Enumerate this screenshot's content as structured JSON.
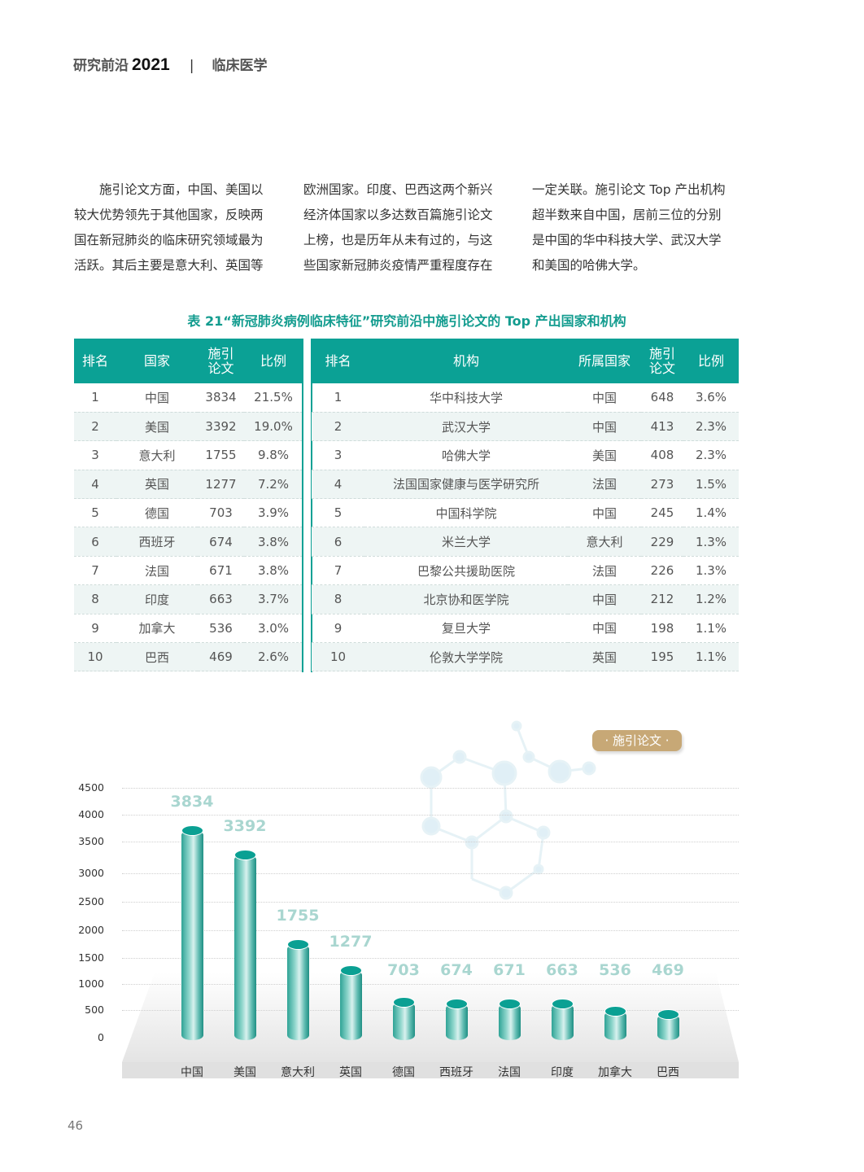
{
  "header": {
    "title": "研究前沿",
    "year": "2021",
    "separator": "|",
    "section": "临床医学"
  },
  "body_text": {
    "col1": [
      "　　施引论文方面，中国、美国以",
      "较大优势领先于其他国家，反映两",
      "国在新冠肺炎的临床研究领域最为",
      "活跃。其后主要是意大利、英国等"
    ],
    "col2": [
      "欧洲国家。印度、巴西这两个新兴",
      "经济体国家以多达数百篇施引论文",
      "上榜，也是历年从未有过的，与这",
      "些国家新冠肺炎疫情严重程度存在"
    ],
    "col3": [
      "一定关联。施引论文 Top 产出机构",
      "超半数来自中国，居前三位的分别",
      "是中国的华中科技大学、武汉大学",
      "和美国的哈佛大学。"
    ]
  },
  "table_caption": "表 21“新冠肺炎病例临床特征”研究前沿中施引论文的 Top 产出国家和机构",
  "countries_table": {
    "headers": [
      "排名",
      "国家",
      "施引论文",
      "比例"
    ],
    "rows": [
      [
        "1",
        "中国",
        "3834",
        "21.5%"
      ],
      [
        "2",
        "美国",
        "3392",
        "19.0%"
      ],
      [
        "3",
        "意大利",
        "1755",
        "9.8%"
      ],
      [
        "4",
        "英国",
        "1277",
        "7.2%"
      ],
      [
        "5",
        "德国",
        "703",
        "3.9%"
      ],
      [
        "6",
        "西班牙",
        "674",
        "3.8%"
      ],
      [
        "7",
        "法国",
        "671",
        "3.8%"
      ],
      [
        "8",
        "印度",
        "663",
        "3.7%"
      ],
      [
        "9",
        "加拿大",
        "536",
        "3.0%"
      ],
      [
        "10",
        "巴西",
        "469",
        "2.6%"
      ]
    ]
  },
  "institutions_table": {
    "headers": [
      "排名",
      "机构",
      "所属国家",
      "施引论文",
      "比例"
    ],
    "rows": [
      [
        "1",
        "华中科技大学",
        "中国",
        "648",
        "3.6%"
      ],
      [
        "2",
        "武汉大学",
        "中国",
        "413",
        "2.3%"
      ],
      [
        "3",
        "哈佛大学",
        "美国",
        "408",
        "2.3%"
      ],
      [
        "4",
        "法国国家健康与医学研究所",
        "法国",
        "273",
        "1.5%"
      ],
      [
        "5",
        "中国科学院",
        "中国",
        "245",
        "1.4%"
      ],
      [
        "6",
        "米兰大学",
        "意大利",
        "229",
        "1.3%"
      ],
      [
        "7",
        "巴黎公共援助医院",
        "法国",
        "226",
        "1.3%"
      ],
      [
        "8",
        "北京协和医学院",
        "中国",
        "212",
        "1.2%"
      ],
      [
        "9",
        "复旦大学",
        "中国",
        "198",
        "1.1%"
      ],
      [
        "10",
        "伦敦大学学院",
        "英国",
        "195",
        "1.1%"
      ]
    ]
  },
  "chart_data": {
    "type": "bar",
    "legend": "· 施引论文 ·",
    "legend_position": "top-right",
    "grid": true,
    "categories": [
      "中国",
      "美国",
      "意大利",
      "英国",
      "德国",
      "西班牙",
      "法国",
      "印度",
      "加拿大",
      "巴西"
    ],
    "values": [
      3834,
      3392,
      1755,
      1277,
      703,
      674,
      671,
      663,
      536,
      469
    ],
    "yticks": [
      "4500",
      "4000",
      "3500",
      "3000",
      "2500",
      "2000",
      "1500",
      "1000",
      "500",
      "0"
    ],
    "ylim": [
      0,
      4500
    ],
    "colors": {
      "bar": "#0aa093",
      "label": "#a9d6d0",
      "legend": "#c7a876"
    }
  },
  "page_number": "46"
}
